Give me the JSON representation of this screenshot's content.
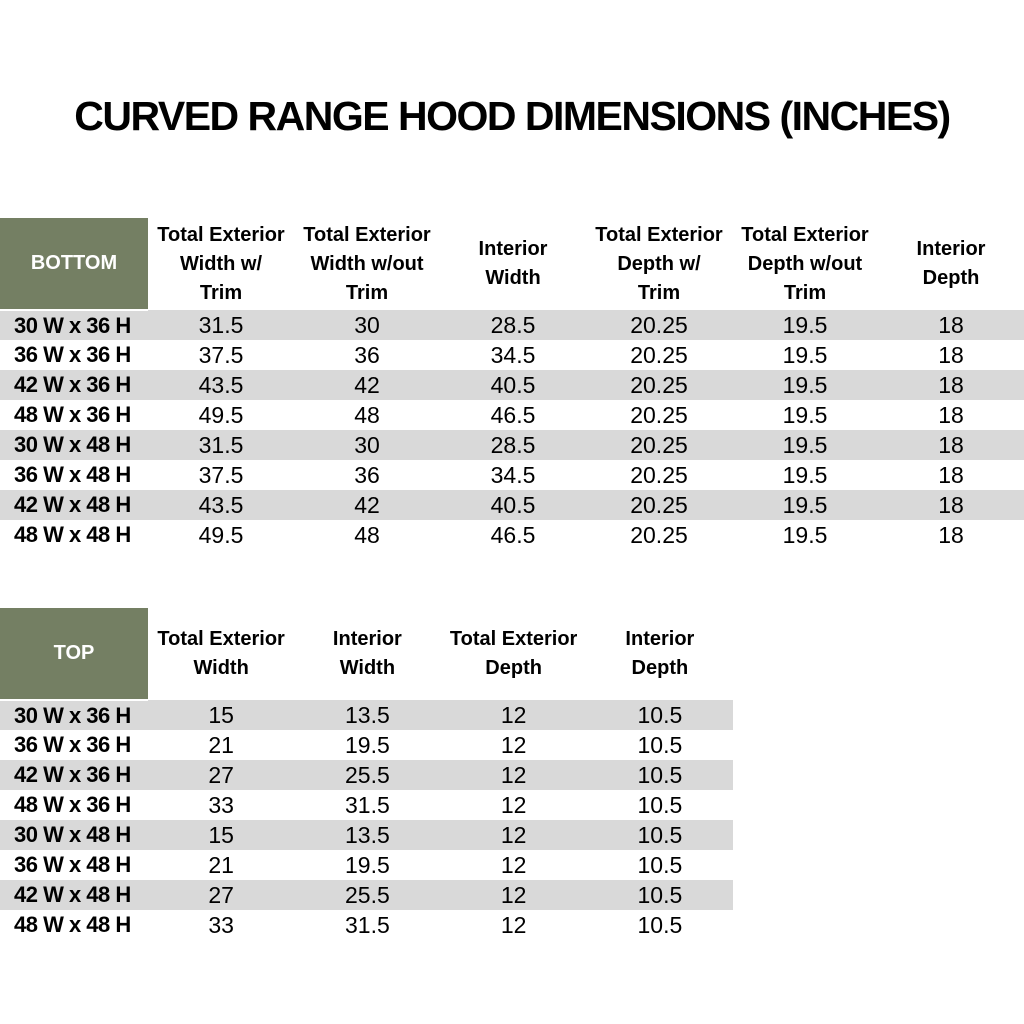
{
  "page": {
    "title": "CURVED RANGE HOOD DIMENSIONS (INCHES)"
  },
  "colors": {
    "corner_green": "#747F63",
    "row_gray": "#D9D9D9",
    "row_white": "#FFFFFF",
    "corner_text": "#FFFFFF",
    "body_text": "#000000"
  },
  "bottom_table": {
    "corner_label": "BOTTOM",
    "columns": [
      "Total Exterior\nWidth w/\nTrim",
      "Total Exterior\nWidth w/out\nTrim",
      "Interior\nWidth",
      "Total Exterior\nDepth w/\nTrim",
      "Total Exterior\nDepth w/out\nTrim",
      "Interior\nDepth"
    ],
    "rows": [
      {
        "label": "30 W x 36 H",
        "values": [
          "31.5",
          "30",
          "28.5",
          "20.25",
          "19.5",
          "18"
        ]
      },
      {
        "label": "36 W x 36 H",
        "values": [
          "37.5",
          "36",
          "34.5",
          "20.25",
          "19.5",
          "18"
        ]
      },
      {
        "label": "42 W x 36 H",
        "values": [
          "43.5",
          "42",
          "40.5",
          "20.25",
          "19.5",
          "18"
        ]
      },
      {
        "label": "48 W x 36 H",
        "values": [
          "49.5",
          "48",
          "46.5",
          "20.25",
          "19.5",
          "18"
        ]
      },
      {
        "label": "30 W x 48 H",
        "values": [
          "31.5",
          "30",
          "28.5",
          "20.25",
          "19.5",
          "18"
        ]
      },
      {
        "label": "36 W x 48 H",
        "values": [
          "37.5",
          "36",
          "34.5",
          "20.25",
          "19.5",
          "18"
        ]
      },
      {
        "label": "42 W x 48 H",
        "values": [
          "43.5",
          "42",
          "40.5",
          "20.25",
          "19.5",
          "18"
        ]
      },
      {
        "label": "48 W x 48 H",
        "values": [
          "49.5",
          "48",
          "46.5",
          "20.25",
          "19.5",
          "18"
        ]
      }
    ]
  },
  "top_table": {
    "corner_label": "TOP",
    "columns": [
      "Total Exterior\nWidth",
      "Interior\nWidth",
      "Total Exterior\nDepth",
      "Interior\nDepth"
    ],
    "rows": [
      {
        "label": "30 W x 36 H",
        "values": [
          "15",
          "13.5",
          "12",
          "10.5"
        ]
      },
      {
        "label": "36 W x 36 H",
        "values": [
          "21",
          "19.5",
          "12",
          "10.5"
        ]
      },
      {
        "label": "42 W x 36 H",
        "values": [
          "27",
          "25.5",
          "12",
          "10.5"
        ]
      },
      {
        "label": "48 W x 36 H",
        "values": [
          "33",
          "31.5",
          "12",
          "10.5"
        ]
      },
      {
        "label": "30 W x 48 H",
        "values": [
          "15",
          "13.5",
          "12",
          "10.5"
        ]
      },
      {
        "label": "36 W x 48 H",
        "values": [
          "21",
          "19.5",
          "12",
          "10.5"
        ]
      },
      {
        "label": "42 W x 48 H",
        "values": [
          "27",
          "25.5",
          "12",
          "10.5"
        ]
      },
      {
        "label": "48 W x 48 H",
        "values": [
          "33",
          "31.5",
          "12",
          "10.5"
        ]
      }
    ]
  }
}
